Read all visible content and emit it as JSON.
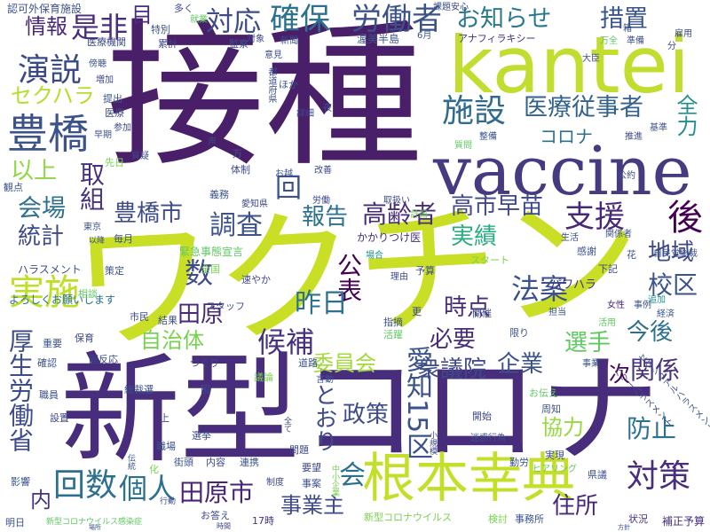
{
  "colors": {
    "background": "#ffffff",
    "palette": [
      "#440154",
      "#472d7b",
      "#3b528b",
      "#2c728e",
      "#21918c",
      "#28ae80",
      "#5ec962",
      "#addc30",
      "#c8df26"
    ]
  },
  "words": [
    {
      "text": "接種",
      "color": "#4a1f6a"
    },
    {
      "text": "ワクチン",
      "color": "#c8df26"
    },
    {
      "text": "新型コロナ",
      "color": "#472d7b"
    },
    {
      "text": "kantei",
      "color": "#c0dd30"
    },
    {
      "text": "vaccine",
      "color": "#463a80"
    },
    {
      "text": "根本幸典",
      "color": "#c4df2a"
    },
    {
      "text": "豊橋",
      "color": "#3b528b"
    },
    {
      "text": "演説",
      "color": "#3a4a87"
    },
    {
      "text": "施設",
      "color": "#2f6b8e"
    },
    {
      "text": "医療従事者",
      "color": "#33638d"
    },
    {
      "text": "労働者",
      "color": "#3b528b"
    },
    {
      "text": "確保",
      "color": "#2c728e"
    },
    {
      "text": "対応",
      "color": "#3e4c8a"
    },
    {
      "text": "是非",
      "color": "#472d7b"
    },
    {
      "text": "お知らせ",
      "color": "#2a788e"
    },
    {
      "text": "措置",
      "color": "#3a548c"
    },
    {
      "text": "情報",
      "color": "#482878"
    },
    {
      "text": "セクハラ",
      "color": "#b5de2b"
    },
    {
      "text": "以上",
      "color": "#8fd744"
    },
    {
      "text": "会場",
      "color": "#2d718e"
    },
    {
      "text": "統計",
      "color": "#3e4989"
    },
    {
      "text": "実施",
      "color": "#bddf26"
    },
    {
      "text": "豊橋市",
      "color": "#3e4c8a"
    },
    {
      "text": "調査",
      "color": "#3b528b"
    },
    {
      "text": "報告",
      "color": "#2c728e"
    },
    {
      "text": "高齢者",
      "color": "#472d7b"
    },
    {
      "text": "高市早苗",
      "color": "#3f4889"
    },
    {
      "text": "支援",
      "color": "#482878"
    },
    {
      "text": "実績",
      "color": "#27ad81"
    },
    {
      "text": "後",
      "color": "#440154"
    },
    {
      "text": "地域",
      "color": "#3e4989"
    },
    {
      "text": "校区",
      "color": "#3b528b"
    },
    {
      "text": "数",
      "color": "#3e4c8a"
    },
    {
      "text": "公表",
      "color": "#440154"
    },
    {
      "text": "昨日",
      "color": "#2c728e"
    },
    {
      "text": "法案",
      "color": "#3b528b"
    },
    {
      "text": "田原",
      "color": "#482878"
    },
    {
      "text": "自治体",
      "color": "#7ad151"
    },
    {
      "text": "候補",
      "color": "#46327e"
    },
    {
      "text": "時点",
      "color": "#472d7b"
    },
    {
      "text": "選手",
      "color": "#5ec962"
    },
    {
      "text": "今後",
      "color": "#2d708e"
    },
    {
      "text": "委員会",
      "color": "#a0da39"
    },
    {
      "text": "必要",
      "color": "#472d7b"
    },
    {
      "text": "企業",
      "color": "#3b528b"
    },
    {
      "text": "衆議院",
      "color": "#3e4989"
    },
    {
      "text": "関係",
      "color": "#46327e"
    },
    {
      "text": "政策",
      "color": "#3e4c8a"
    },
    {
      "text": "協力",
      "color": "#95d840"
    },
    {
      "text": "防止",
      "color": "#2c728e"
    },
    {
      "text": "対策",
      "color": "#472d7b"
    },
    {
      "text": "回数",
      "color": "#2d708e"
    },
    {
      "text": "個人",
      "color": "#2c728e"
    },
    {
      "text": "田原市",
      "color": "#482475"
    },
    {
      "text": "事業主",
      "color": "#3e4989"
    },
    {
      "text": "住所",
      "color": "#482878"
    },
    {
      "text": "内",
      "color": "#46327e"
    },
    {
      "text": "会",
      "color": "#2c728e"
    },
    {
      "text": "回",
      "color": "#3b528b"
    },
    {
      "text": "次",
      "color": "#440154"
    },
    {
      "text": "全力",
      "color": "#21918c"
    },
    {
      "text": "コロナ",
      "color": "#2c728e"
    },
    {
      "text": "目",
      "color": "#472d7b"
    },
    {
      "text": "取組",
      "color": "#46327e"
    },
    {
      "text": "厚生労働省",
      "color": "#3e4c8a"
    },
    {
      "text": "愛知15区",
      "color": "#3b528b"
    },
    {
      "text": "とおり",
      "color": "#3e4c8a"
    },
    {
      "text": "ハラスメント",
      "color": "#3b528b"
    },
    {
      "text": "パワハラ",
      "color": "#472d7b"
    },
    {
      "text": "かかりつけ医",
      "color": "#472d7b"
    },
    {
      "text": "緊急事態宣言",
      "color": "#5ec962"
    },
    {
      "text": "よろしくお願いします",
      "color": "#2c728e"
    },
    {
      "text": "アナフィラキシー",
      "color": "#472d7b"
    },
    {
      "text": "渥美半島",
      "color": "#3b528b"
    },
    {
      "text": "医療機関",
      "color": "#3e4989"
    },
    {
      "text": "認可外保育施設",
      "color": "#3b528b"
    },
    {
      "text": "新型コロナウイルス",
      "color": "#7ad151"
    },
    {
      "text": "新型コロナウイルス感染症",
      "color": "#5ec962"
    },
    {
      "text": "補正予算",
      "color": "#472d7b"
    },
    {
      "text": "パワーハラスメント",
      "color": "#3e4989"
    },
    {
      "text": "セクシュアルハラスメント",
      "color": "#3b528b"
    },
    {
      "text": "自民党総裁",
      "color": "#3b528b"
    },
    {
      "text": "女性",
      "color": "#482878"
    },
    {
      "text": "事例",
      "color": "#3b528b"
    },
    {
      "text": "追加",
      "color": "#21918c"
    },
    {
      "text": "スタッフ",
      "color": "#3b528b"
    },
    {
      "text": "スタート",
      "color": "#7ad151"
    },
    {
      "text": "ヒアリング",
      "color": "#5ec962"
    },
    {
      "text": "迷惑行為",
      "color": "#3b528b"
    },
    {
      "text": "事務所",
      "color": "#3b528b"
    },
    {
      "text": "状況",
      "color": "#472d7b"
    },
    {
      "text": "検討",
      "color": "#7ad151"
    },
    {
      "text": "明日",
      "color": "#3b528b"
    },
    {
      "text": "お答え",
      "color": "#3e4989"
    },
    {
      "text": "17時",
      "color": "#46327e"
    },
    {
      "text": "県議",
      "color": "#3b528b"
    },
    {
      "text": "実現",
      "color": "#3e4989"
    },
    {
      "text": "勤労",
      "color": "#3b528b"
    },
    {
      "text": "開始",
      "color": "#3e4989"
    },
    {
      "text": "周知",
      "color": "#3b528b"
    },
    {
      "text": "お伝え",
      "color": "#5ec962"
    },
    {
      "text": "事業",
      "color": "#3b528b"
    },
    {
      "text": "道路",
      "color": "#3b528b"
    },
    {
      "text": "確認",
      "color": "#3b528b"
    },
    {
      "text": "副反応",
      "color": "#3e4989"
    },
    {
      "text": "重要",
      "color": "#3b528b"
    },
    {
      "text": "保育",
      "color": "#3e4989"
    },
    {
      "text": "結果",
      "color": "#3b528b"
    },
    {
      "text": "市民",
      "color": "#3e4989"
    },
    {
      "text": "相談",
      "color": "#5ec962"
    },
    {
      "text": "策定",
      "color": "#3b528b"
    },
    {
      "text": "全国",
      "color": "#7ad151"
    },
    {
      "text": "予算",
      "color": "#3b528b"
    },
    {
      "text": "理由",
      "color": "#3e4989"
    },
    {
      "text": "場合",
      "color": "#21918c"
    },
    {
      "text": "感謝",
      "color": "#3b528b"
    },
    {
      "text": "生活",
      "color": "#3e4989"
    },
    {
      "text": "関係者",
      "color": "#3b528b"
    },
    {
      "text": "花",
      "color": "#3b528b"
    },
    {
      "text": "下記",
      "color": "#3e4989"
    },
    {
      "text": "活用",
      "color": "#5ec962"
    },
    {
      "text": "経済",
      "color": "#3b528b"
    },
    {
      "text": "開催",
      "color": "#3e4989"
    },
    {
      "text": "限り",
      "color": "#3b528b"
    },
    {
      "text": "更",
      "color": "#3e4989"
    },
    {
      "text": "指摘",
      "color": "#3b528b"
    },
    {
      "text": "活躍",
      "color": "#5ec962"
    },
    {
      "text": "議論",
      "color": "#7ad151"
    },
    {
      "text": "づくり",
      "color": "#3e4989"
    },
    {
      "text": "言動",
      "color": "#3b528b"
    },
    {
      "text": "総裁選",
      "color": "#3b528b"
    },
    {
      "text": "国",
      "color": "#3e4989"
    },
    {
      "text": "職員",
      "color": "#3b528b"
    },
    {
      "text": "設置",
      "color": "#3e4989"
    },
    {
      "text": "職場",
      "color": "#3b528b"
    },
    {
      "text": "選挙",
      "color": "#3e4989"
    },
    {
      "text": "街頭",
      "color": "#3b528b"
    },
    {
      "text": "内容",
      "color": "#3e4989"
    },
    {
      "text": "連携",
      "color": "#3b528b"
    },
    {
      "text": "要望",
      "color": "#3e4989"
    },
    {
      "text": "事案",
      "color": "#3b528b"
    },
    {
      "text": "問題",
      "color": "#3e4989"
    },
    {
      "text": "影響",
      "color": "#3b528b"
    },
    {
      "text": "行動",
      "color": "#3e4989"
    },
    {
      "text": "化",
      "color": "#7ad151"
    },
    {
      "text": "上",
      "color": "#3b528b"
    },
    {
      "text": "速やか",
      "color": "#3e4989"
    },
    {
      "text": "東京",
      "color": "#3b528b"
    },
    {
      "text": "以降",
      "color": "#3e4989"
    },
    {
      "text": "毎月",
      "color": "#3b528b"
    },
    {
      "text": "愛知県",
      "color": "#3e4989"
    },
    {
      "text": "義務",
      "color": "#3b528b"
    },
    {
      "text": "体制",
      "color": "#3e4989"
    },
    {
      "text": "お越",
      "color": "#3b528b"
    },
    {
      "text": "改善",
      "color": "#3e4989"
    },
    {
      "text": "万",
      "color": "#3b528b"
    },
    {
      "text": "質疑",
      "color": "#3e4989"
    },
    {
      "text": "先日",
      "color": "#7ad151"
    },
    {
      "text": "観点",
      "color": "#3b528b"
    },
    {
      "text": "医療",
      "color": "#3e4989"
    },
    {
      "text": "提出",
      "color": "#3b528b"
    },
    {
      "text": "累計",
      "color": "#3e4989"
    },
    {
      "text": "特別",
      "color": "#3b528b"
    },
    {
      "text": "多く",
      "color": "#3e4989"
    },
    {
      "text": "就業",
      "color": "#5ec962"
    },
    {
      "text": "監察",
      "color": "#3b528b"
    },
    {
      "text": "対象",
      "color": "#3e4989"
    },
    {
      "text": "新聞",
      "color": "#3b528b"
    },
    {
      "text": "意見",
      "color": "#3e4989"
    },
    {
      "text": "ほか",
      "color": "#3b528b"
    },
    {
      "text": "詳細",
      "color": "#3e4989"
    },
    {
      "text": "課題",
      "color": "#3b528b"
    },
    {
      "text": "安心",
      "color": "#3e4989"
    },
    {
      "text": "6月",
      "color": "#3b528b"
    },
    {
      "text": "万全",
      "color": "#5ec962"
    },
    {
      "text": "準備",
      "color": "#3b528b"
    },
    {
      "text": "雇用",
      "color": "#3e4989"
    },
    {
      "text": "整備",
      "color": "#3b528b"
    },
    {
      "text": "推進",
      "color": "#3e4989"
    },
    {
      "text": "基準",
      "color": "#3b528b"
    },
    {
      "text": "質問",
      "color": "#5ec962"
    },
    {
      "text": "計画",
      "color": "#7ad151"
    },
    {
      "text": "取扱い",
      "color": "#3e4989"
    },
    {
      "text": "大臣",
      "color": "#3b528b"
    },
    {
      "text": "労働",
      "color": "#3e4989"
    },
    {
      "text": "都道府県",
      "color": "#3b528b"
    },
    {
      "text": "声",
      "color": "#3e4989"
    },
    {
      "text": "早期",
      "color": "#3b528b"
    },
    {
      "text": "増加",
      "color": "#3e4989"
    },
    {
      "text": "傍聴",
      "color": "#3b528b"
    },
    {
      "text": "参加",
      "color": "#3e4989"
    },
    {
      "text": "箱",
      "color": "#3b528b"
    },
    {
      "text": "分",
      "color": "#3e4989"
    },
    {
      "text": "夜",
      "color": "#3b528b"
    },
    {
      "text": "小規模",
      "color": "#3e4989"
    },
    {
      "text": "中小企業",
      "color": "#7ad151"
    },
    {
      "text": "伝統",
      "color": "#3b528b"
    },
    {
      "text": "全て",
      "color": "#3e4989"
    },
    {
      "text": "担当",
      "color": "#3b528b"
    },
    {
      "text": "制度",
      "color": "#3e4989"
    },
    {
      "text": "公約",
      "color": "#3b528b"
    },
    {
      "text": "時間",
      "color": "#3e4989"
    },
    {
      "text": "場所",
      "color": "#3b528b"
    },
    {
      "text": "方針",
      "color": "#3e4989"
    }
  ]
}
